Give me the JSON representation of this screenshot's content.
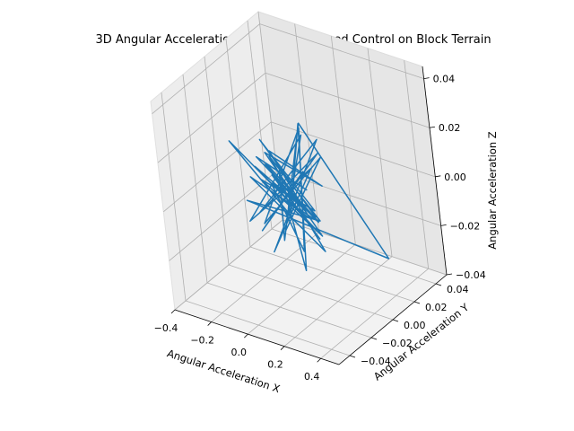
{
  "chart_data": {
    "type": "line",
    "projection": "3d",
    "title": "3D Angular Acceleration Plot for Predefined Control on Block Terrain",
    "xlabel": "Angular Acceleration X",
    "ylabel": "Angular Acceleration Y",
    "zlabel": "Angular Acceleration Z",
    "xlim": [
      -0.4,
      0.5
    ],
    "ylim": [
      -0.05,
      0.05
    ],
    "zlim": [
      -0.04,
      0.045
    ],
    "x_ticks": [
      "−0.4",
      "−0.2",
      "0.0",
      "0.2",
      "0.4"
    ],
    "y_ticks": [
      "−0.04",
      "−0.02",
      "0.00",
      "0.02",
      "0.04"
    ],
    "z_ticks": [
      "−0.04",
      "−0.02",
      "0.00",
      "0.02",
      "0.04"
    ],
    "grid": true,
    "line_color": "#1f77b4",
    "series": [
      {
        "x": [
          0.02,
          -0.05,
          0.08,
          -0.12,
          0.05,
          -0.03,
          0.1,
          -0.08,
          0.03,
          -0.02,
          0.06,
          -0.1,
          0.09,
          -0.04,
          0.02,
          -0.35,
          0.04,
          -0.06,
          0.12,
          -0.09,
          0.07,
          -0.01,
          0.45,
          -0.05,
          0.03,
          -0.07,
          0.08,
          -0.11,
          0.04,
          -0.02,
          0.05,
          -0.08,
          0.06,
          -0.03,
          0.1,
          -0.06,
          0.02,
          -0.04,
          0.07,
          -0.09,
          0.03,
          -0.01,
          0.05,
          -0.06,
          0.08,
          -0.03,
          0.02,
          -0.07,
          0.04,
          -0.02
        ],
        "y": [
          0.01,
          -0.02,
          0.015,
          -0.01,
          0.02,
          -0.015,
          0.005,
          -0.025,
          0.01,
          -0.005,
          0.02,
          -0.01,
          0.0,
          0.012,
          -0.018,
          0.005,
          -0.008,
          0.022,
          -0.012,
          0.006,
          -0.02,
          0.015,
          0.01,
          -0.03,
          0.018,
          -0.004,
          0.012,
          -0.016,
          0.008,
          -0.011,
          0.02,
          -0.006,
          0.014,
          -0.019,
          0.004,
          -0.012,
          0.016,
          -0.008,
          0.01,
          -0.014,
          0.006,
          -0.017,
          0.013,
          -0.005,
          0.009,
          -0.021,
          0.011,
          -0.007,
          0.015,
          -0.01
        ],
        "z": [
          0.005,
          -0.01,
          0.012,
          -0.008,
          0.015,
          -0.02,
          0.01,
          -0.005,
          0.02,
          -0.015,
          0.008,
          -0.012,
          0.028,
          -0.03,
          0.01,
          0.01,
          -0.006,
          0.018,
          -0.025,
          0.004,
          -0.011,
          0.022,
          -0.02,
          0.006,
          -0.018,
          0.014,
          -0.027,
          0.009,
          -0.013,
          0.02,
          -0.004,
          0.016,
          -0.022,
          0.011,
          -0.007,
          0.024,
          -0.016,
          0.005,
          -0.019,
          0.013,
          -0.009,
          0.017,
          -0.023,
          0.007,
          -0.014,
          0.021,
          -0.003,
          0.012,
          -0.017,
          0.002
        ]
      }
    ]
  }
}
